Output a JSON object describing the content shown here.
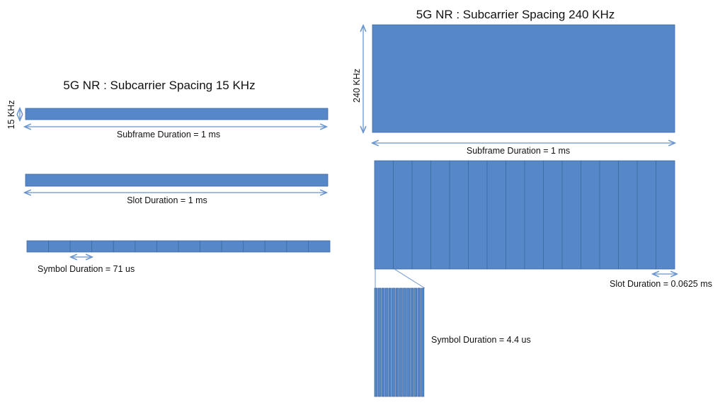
{
  "colors": {
    "block": "#5687c8",
    "block_border": "#3f6aa3",
    "arrow": "#6b95cf"
  },
  "left": {
    "title": "5G NR : Subcarrier Spacing 15 KHz",
    "bandwidth_label": "15 KHz",
    "subframe_label": "Subframe Duration = 1 ms",
    "slot_label": "Slot Duration = 1 ms",
    "symbol_label": "Symbol Duration = 71 us",
    "symbols_per_slot": 14
  },
  "right": {
    "title": "5G NR : Subcarrier Spacing 240 KHz",
    "bandwidth_label": "240 KHz",
    "subframe_label": "Subframe Duration = 1 ms",
    "slot_label": "Slot Duration = 0.0625 ms",
    "symbol_label": "Symbol Duration = 4.4 us",
    "slots_per_subframe": 16,
    "symbols_per_slot": 14
  }
}
